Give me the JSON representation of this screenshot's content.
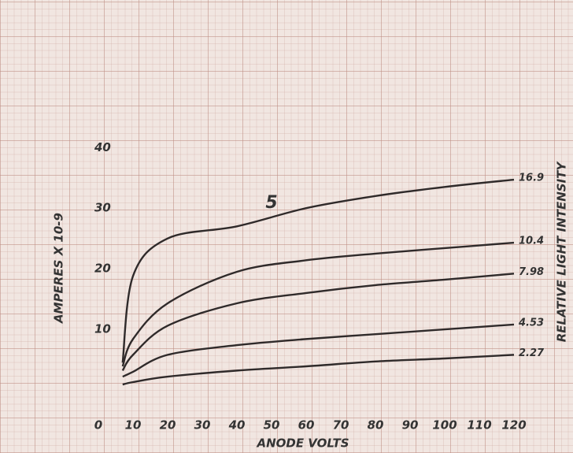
{
  "chart_data": {
    "type": "line",
    "x_label": "ANODE VOLTS",
    "y_label": "AMPERES X 10-9",
    "y2_label": "RELATIVE LIGHT INTENSITY",
    "annotation": "5",
    "x": [
      7,
      10,
      20,
      40,
      60,
      80,
      100,
      120
    ],
    "series": [
      {
        "name": "16.9",
        "color": "#2f2a2a",
        "values": [
          4.5,
          18.8,
          25,
          27,
          30,
          32,
          33.5,
          34.7
        ]
      },
      {
        "name": "10.4",
        "color": "#2f2a2a",
        "values": [
          3.9,
          8.4,
          14.3,
          19.5,
          21.4,
          22.5,
          23.4,
          24.3
        ]
      },
      {
        "name": "7.98",
        "color": "#2f2a2a",
        "values": [
          3.2,
          5.8,
          10.6,
          14.3,
          16,
          17.3,
          18.2,
          19.2
        ]
      },
      {
        "name": "4.53",
        "color": "#2f2a2a",
        "values": [
          2.2,
          3,
          5.8,
          7.4,
          8.4,
          9.2,
          10,
          10.8
        ]
      },
      {
        "name": "2.27",
        "color": "#2f2a2a",
        "values": [
          0.9,
          1.3,
          2.2,
          3.2,
          3.9,
          4.7,
          5.2,
          5.8
        ]
      }
    ],
    "xlim": [
      0,
      130
    ],
    "xticks": [
      0,
      10,
      20,
      30,
      40,
      50,
      60,
      70,
      80,
      90,
      100,
      110,
      120
    ],
    "ylim": [
      0,
      62
    ],
    "yticks": [
      10,
      20,
      30,
      40
    ]
  }
}
